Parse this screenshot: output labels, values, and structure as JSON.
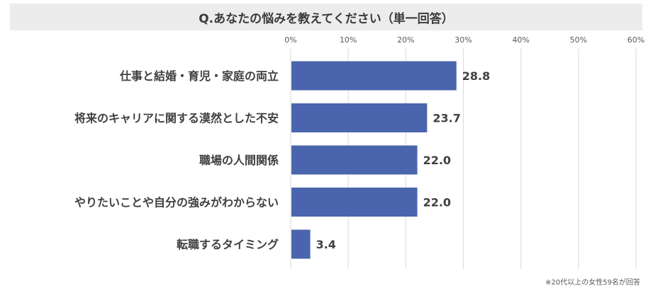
{
  "title": "Q.あなたの悩みを教えてください（単一回答）",
  "footnote": "※20代以上の女性59名が回答",
  "colors": {
    "bar": "#4a65ad",
    "grid": "#d9d9d9",
    "title_bg": "#ececec"
  },
  "chart_data": {
    "type": "bar",
    "orientation": "horizontal",
    "title": "Q.あなたの悩みを教えてください（単一回答）",
    "categories": [
      "仕事と結婚・育児・家庭の両立",
      "将来のキャリアに関する漠然とした不安",
      "職場の人間関係",
      "やりたいことや自分の強みがわからない",
      "転職するタイミング"
    ],
    "values": [
      28.8,
      23.7,
      22.0,
      22.0,
      3.4
    ],
    "value_labels": [
      "28.8",
      "23.7",
      "22.0",
      "22.0",
      "3.4"
    ],
    "xlim": [
      0,
      60
    ],
    "xticks": [
      0,
      10,
      20,
      30,
      40,
      50,
      60
    ],
    "xtick_labels": [
      "0%",
      "10%",
      "20%",
      "30%",
      "40%",
      "50%",
      "60%"
    ],
    "xaxis_position": "top",
    "grid": true,
    "legend": "none"
  }
}
